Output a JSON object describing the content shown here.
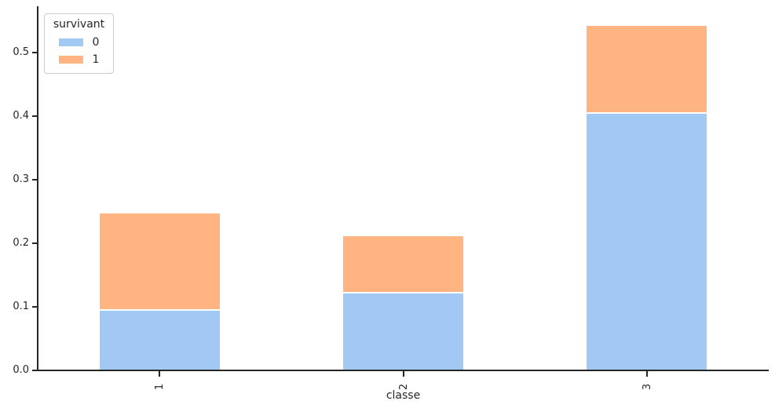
{
  "chart_data": {
    "type": "bar",
    "stacked": true,
    "title": "",
    "xlabel": "classe",
    "ylabel": "",
    "categories": [
      "1",
      "2",
      "3"
    ],
    "series": [
      {
        "name": "0",
        "color": "#a1c9f4",
        "values": [
          0.094,
          0.1207,
          0.4034
        ]
      },
      {
        "name": "1",
        "color": "#ffb482",
        "values": [
          0.1528,
          0.0909,
          0.1383
        ]
      }
    ],
    "stack_totals": [
      0.2468,
      0.2116,
      0.5417
    ],
    "ylim": [
      0,
      0.572
    ],
    "yticks": [
      0.0,
      0.1,
      0.2,
      0.3,
      0.4,
      0.5
    ],
    "ytick_labels": [
      "0.0",
      "0.1",
      "0.2",
      "0.3",
      "0.4",
      "0.5"
    ],
    "xtick_rotation": 90,
    "grid": false,
    "legend": {
      "title": "survivant",
      "entries": [
        "0",
        "1"
      ],
      "position": "upper-left"
    },
    "axis_color": "#262626",
    "background_color": "#ffffff"
  }
}
